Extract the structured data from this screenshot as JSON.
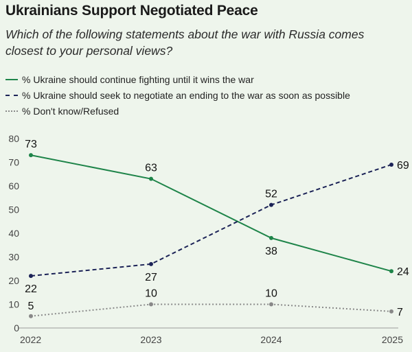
{
  "title": "Ukrainians Support Negotiated Peace",
  "subtitle": "Which of the following statements about the war with Russia comes closest to your personal views?",
  "chart_data": {
    "type": "line",
    "title": "Ukrainians Support Negotiated Peace",
    "xlabel": "",
    "ylabel": "",
    "x": [
      "2022",
      "2023",
      "2024",
      "2025"
    ],
    "ylim": [
      0,
      80
    ],
    "yticks": [
      0,
      10,
      20,
      30,
      40,
      50,
      60,
      70,
      80
    ],
    "grid": false,
    "legend_position": "top-left",
    "series": [
      {
        "name": "% Ukraine should continue fighting until it wins the war",
        "values": [
          73,
          63,
          38,
          24
        ],
        "color": "#1e8449",
        "style": "solid",
        "label_pos": [
          "above",
          "above",
          "below",
          "right"
        ]
      },
      {
        "name": "% Ukraine should seek to negotiate an ending to the war as soon as possible",
        "values": [
          22,
          27,
          52,
          69
        ],
        "color": "#1c2357",
        "style": "dashed",
        "label_pos": [
          "below",
          "below",
          "above",
          "right"
        ]
      },
      {
        "name": "% Don't know/Refused",
        "values": [
          5,
          10,
          10,
          7
        ],
        "color": "#888888",
        "style": "dotted",
        "label_pos": [
          "above",
          "above",
          "above",
          "right"
        ]
      }
    ]
  }
}
